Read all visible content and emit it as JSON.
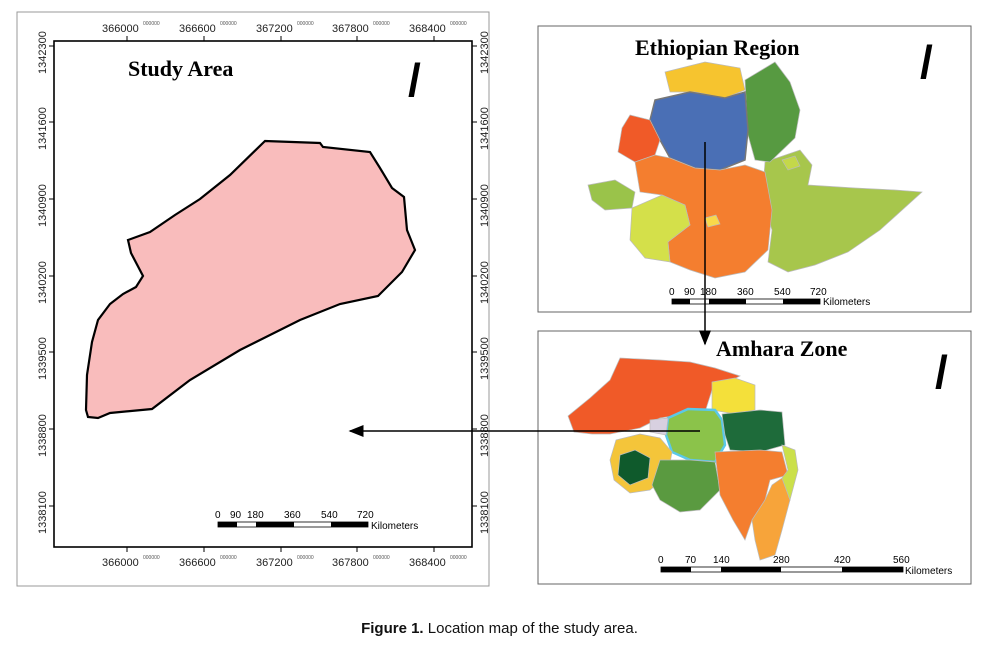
{
  "study_area": {
    "title": "Study Area",
    "north_arrow": "/",
    "x_ticks": [
      "366000",
      "366600",
      "367200",
      "367800",
      "368400"
    ],
    "y_ticks": [
      "1342300",
      "1341600",
      "1340900",
      "1340200",
      "1339500",
      "1338800",
      "1338100"
    ],
    "tick_suffix": "000000",
    "polygon_color": "#f9bcbc",
    "scalebar": {
      "labels": [
        "0",
        "90",
        "180",
        "360",
        "540",
        "720"
      ],
      "unit": "Kilometers"
    }
  },
  "ethiopia": {
    "title": "Ethiopian Region",
    "north_arrow": "/",
    "scalebar": {
      "labels": [
        "0",
        "90",
        "180",
        "360",
        "540",
        "720"
      ],
      "unit": "Kilometers"
    }
  },
  "amhara": {
    "title": "Amhara Zone",
    "north_arrow": "/",
    "scalebar": {
      "labels": [
        "0",
        "70",
        "140",
        "280",
        "420",
        "560"
      ],
      "unit": "Kilometers"
    }
  },
  "caption": {
    "label": "Figure 1.",
    "text": "Location map of the study area."
  }
}
